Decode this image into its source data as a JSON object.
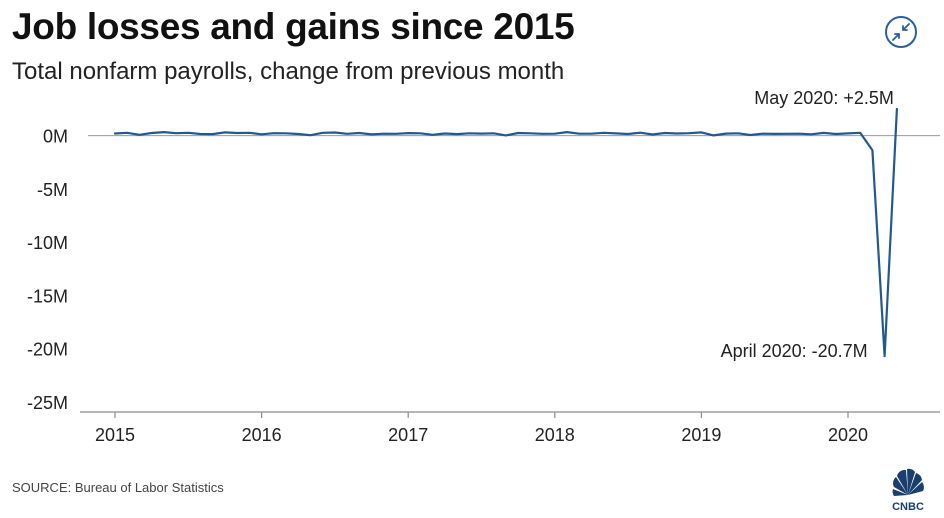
{
  "header": {
    "title": "Job losses and gains since 2015",
    "subtitle": "Total nonfarm payrolls, change from previous month"
  },
  "footer": {
    "source": "SOURCE: Bureau of Labor Statistics",
    "logo_text": "CNBC"
  },
  "icons": {
    "expand": "collapse-arrows-icon"
  },
  "colors": {
    "line": "#24598f",
    "axis": "#8a8a8a",
    "text": "#111111",
    "accent": "#2a5f9e"
  },
  "chart_data": {
    "type": "line",
    "title": "Job losses and gains since 2015",
    "subtitle": "Total nonfarm payrolls, change from previous month",
    "xlabel": "",
    "ylabel": "",
    "ylim": [
      -25,
      2.5
    ],
    "xlim": [
      "2015-01",
      "2020-09"
    ],
    "x_ticks": [
      "2015",
      "2016",
      "2017",
      "2018",
      "2019",
      "2020"
    ],
    "y_ticks": [
      "0M",
      "-5M",
      "-10M",
      "-15M",
      "-20M",
      "-25M"
    ],
    "y_tick_values": [
      0,
      -5,
      -10,
      -15,
      -20,
      -25
    ],
    "grid": false,
    "zero_line": true,
    "series": [
      {
        "x": [
          "2015-01",
          "2015-02",
          "2015-03",
          "2015-04",
          "2015-05",
          "2015-06",
          "2015-07",
          "2015-08",
          "2015-09",
          "2015-10",
          "2015-11",
          "2015-12",
          "2016-01",
          "2016-02",
          "2016-03",
          "2016-04",
          "2016-05",
          "2016-06",
          "2016-07",
          "2016-08",
          "2016-09",
          "2016-10",
          "2016-11",
          "2016-12",
          "2017-01",
          "2017-02",
          "2017-03",
          "2017-04",
          "2017-05",
          "2017-06",
          "2017-07",
          "2017-08",
          "2017-09",
          "2017-10",
          "2017-11",
          "2017-12",
          "2018-01",
          "2018-02",
          "2018-03",
          "2018-04",
          "2018-05",
          "2018-06",
          "2018-07",
          "2018-08",
          "2018-09",
          "2018-10",
          "2018-11",
          "2018-12",
          "2019-01",
          "2019-02",
          "2019-03",
          "2019-04",
          "2019-05",
          "2019-06",
          "2019-07",
          "2019-08",
          "2019-09",
          "2019-10",
          "2019-11",
          "2019-12",
          "2020-01",
          "2020-02",
          "2020-03",
          "2020-04",
          "2020-05"
        ],
        "values": [
          0.2,
          0.27,
          0.08,
          0.25,
          0.33,
          0.23,
          0.27,
          0.15,
          0.14,
          0.3,
          0.25,
          0.27,
          0.13,
          0.23,
          0.22,
          0.15,
          0.04,
          0.27,
          0.29,
          0.17,
          0.25,
          0.12,
          0.18,
          0.17,
          0.24,
          0.22,
          0.08,
          0.2,
          0.14,
          0.22,
          0.19,
          0.22,
          0.02,
          0.25,
          0.22,
          0.17,
          0.18,
          0.33,
          0.18,
          0.18,
          0.27,
          0.21,
          0.15,
          0.28,
          0.11,
          0.25,
          0.2,
          0.23,
          0.3,
          0.02,
          0.19,
          0.22,
          0.06,
          0.18,
          0.16,
          0.17,
          0.18,
          0.13,
          0.26,
          0.15,
          0.21,
          0.27,
          -1.37,
          -20.7,
          2.5
        ]
      }
    ],
    "annotations": [
      {
        "text": "May 2020: +2.5M",
        "x": "2020-05",
        "y": 2.5
      },
      {
        "text": "April 2020: -20.7M",
        "x": "2020-04",
        "y": -20.7
      }
    ]
  }
}
